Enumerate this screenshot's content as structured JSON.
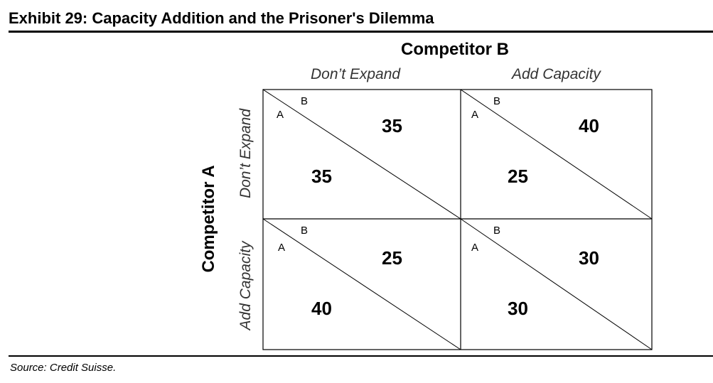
{
  "title": "Exhibit 29: Capacity Addition and the Prisoner's Dilemma",
  "competitor_b": "Competitor B",
  "competitor_a": "Competitor A",
  "columns": [
    "Don’t Expand",
    "Add Capacity"
  ],
  "rows": [
    "Don’t Expand",
    "Add Capacity"
  ],
  "cells": [
    {
      "label_a": "A",
      "label_b": "B",
      "payoff_a": "35",
      "payoff_b": "35"
    },
    {
      "label_a": "A",
      "label_b": "B",
      "payoff_a": "25",
      "payoff_b": "40"
    },
    {
      "label_a": "A",
      "label_b": "B",
      "payoff_a": "40",
      "payoff_b": "25"
    },
    {
      "label_a": "A",
      "label_b": "B",
      "payoff_a": "30",
      "payoff_b": "30"
    }
  ],
  "source": "Source: Credit Suisse."
}
